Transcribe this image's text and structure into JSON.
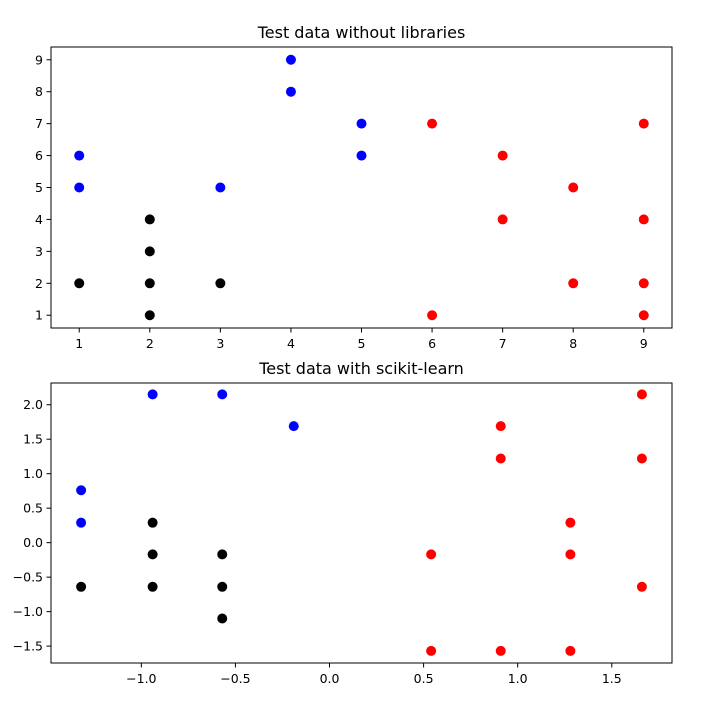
{
  "chart_data": [
    {
      "type": "scatter",
      "title": "Test data without libraries",
      "xlabel": "",
      "ylabel": "",
      "xlim": [
        0.6,
        9.4
      ],
      "ylim": [
        0.6,
        9.4
      ],
      "xticks": [
        1,
        2,
        3,
        4,
        5,
        6,
        7,
        8,
        9
      ],
      "yticks": [
        1,
        2,
        3,
        4,
        5,
        6,
        7,
        8,
        9
      ],
      "grid": false,
      "colors": {
        "blue": "#0000ff",
        "red": "#ff0000",
        "black": "#000000"
      },
      "series": [
        {
          "color": "blue",
          "points": [
            [
              1,
              6
            ],
            [
              1,
              5
            ],
            [
              3,
              5
            ],
            [
              4,
              9
            ],
            [
              4,
              8
            ],
            [
              5,
              7
            ],
            [
              5,
              6
            ]
          ]
        },
        {
          "color": "red",
          "points": [
            [
              6,
              7
            ],
            [
              6,
              1
            ],
            [
              7,
              6
            ],
            [
              7,
              4
            ],
            [
              8,
              5
            ],
            [
              8,
              2
            ],
            [
              9,
              7
            ],
            [
              9,
              4
            ],
            [
              9,
              2
            ],
            [
              9,
              1
            ]
          ]
        },
        {
          "color": "black",
          "points": [
            [
              1,
              2
            ],
            [
              2,
              4
            ],
            [
              2,
              3
            ],
            [
              2,
              2
            ],
            [
              2,
              1
            ],
            [
              3,
              2
            ]
          ]
        }
      ]
    },
    {
      "type": "scatter",
      "title": "Test data with scikit-learn",
      "xlabel": "",
      "ylabel": "",
      "xlim": [
        -1.48,
        1.82
      ],
      "ylim": [
        -1.745,
        2.315
      ],
      "xticks": [
        -1.0,
        -0.5,
        0.0,
        0.5,
        1.0,
        1.5
      ],
      "xtick_labels": [
        "−1.0",
        "−0.5",
        "0.0",
        "0.5",
        "1.0",
        "1.5"
      ],
      "yticks": [
        -1.5,
        -1.0,
        -0.5,
        0.0,
        0.5,
        1.0,
        1.5,
        2.0
      ],
      "ytick_labels": [
        "−1.5",
        "−1.0",
        "−0.5",
        "0.0",
        "0.5",
        "1.0",
        "1.5",
        "2.0"
      ],
      "grid": false,
      "colors": {
        "blue": "#0000ff",
        "red": "#ff0000",
        "black": "#000000"
      },
      "series": [
        {
          "color": "blue",
          "points": [
            [
              -1.32,
              0.76
            ],
            [
              -1.32,
              0.29
            ],
            [
              -0.94,
              2.15
            ],
            [
              -0.57,
              2.15
            ],
            [
              -0.19,
              1.69
            ]
          ]
        },
        {
          "color": "red",
          "points": [
            [
              0.54,
              -0.17
            ],
            [
              0.54,
              -1.57
            ],
            [
              0.91,
              1.69
            ],
            [
              0.91,
              1.22
            ],
            [
              0.91,
              -1.57
            ],
            [
              1.28,
              0.29
            ],
            [
              1.28,
              -0.17
            ],
            [
              1.28,
              -1.57
            ],
            [
              1.66,
              2.15
            ],
            [
              1.66,
              1.22
            ],
            [
              1.66,
              -0.64
            ]
          ]
        },
        {
          "color": "black",
          "points": [
            [
              -1.32,
              -0.64
            ],
            [
              -0.94,
              0.29
            ],
            [
              -0.94,
              -0.17
            ],
            [
              -0.94,
              -0.64
            ],
            [
              -0.57,
              -0.17
            ],
            [
              -0.57,
              -0.64
            ],
            [
              -0.57,
              -1.1
            ]
          ]
        }
      ]
    }
  ]
}
